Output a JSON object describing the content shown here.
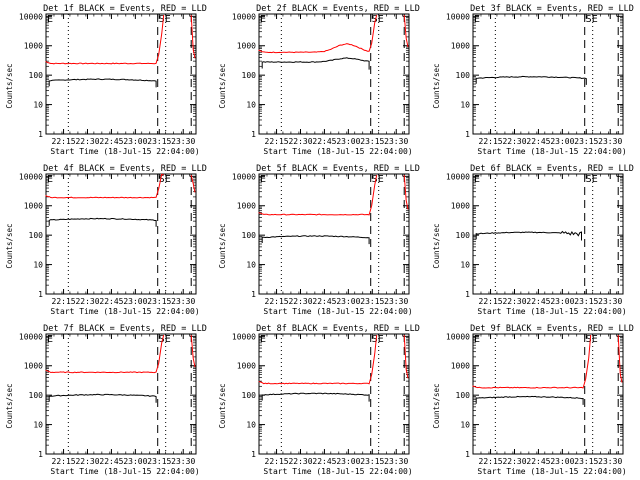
{
  "chart_data": {
    "type": "line",
    "x_tick_labels": [
      "22:15",
      "22:30",
      "22:45",
      "23:00",
      "23:15",
      "23:30"
    ],
    "y_tick_labels": [
      "1",
      "10",
      "100",
      "1000",
      "10000"
    ],
    "ylim": [
      1,
      12000
    ],
    "yscale": "log",
    "xlabel": "Start Time (18-Jul-15 22:04:00)",
    "ylabel": "Counts/sec",
    "colors": {
      "events": "#000000",
      "lld": "#ff0000"
    },
    "markers": {
      "entry": "E",
      "eclipse": "SE"
    },
    "panels": [
      {
        "title": "Det 1f BLACK = Events, RED = LLD",
        "events_level": 70,
        "lld_level": 250,
        "events_end": "23:13",
        "lld_shape": "flat",
        "has_lld": true
      },
      {
        "title": "Det 2f BLACK = Events, RED = LLD",
        "events_level": 280,
        "lld_level": 600,
        "events_end": "23:13",
        "lld_shape": "bump",
        "has_lld": true
      },
      {
        "title": "Det 3f BLACK = Events, RED = LLD",
        "events_level": 85,
        "lld_level": null,
        "events_end": "23:15",
        "lld_shape": "none",
        "has_lld": false
      },
      {
        "title": "Det 4f BLACK = Events, RED = LLD",
        "events_level": 350,
        "lld_level": 1900,
        "events_end": "23:13",
        "lld_shape": "flat",
        "has_lld": true
      },
      {
        "title": "Det 5f BLACK = Events, RED = LLD",
        "events_level": 90,
        "lld_level": 500,
        "events_end": "23:13",
        "lld_shape": "flat",
        "has_lld": true
      },
      {
        "title": "Det 6f BLACK = Events, RED = LLD",
        "events_level": 120,
        "lld_level": null,
        "events_end": "23:12",
        "lld_shape": "none",
        "has_lld": false
      },
      {
        "title": "Det 7f BLACK = Events, RED = LLD",
        "events_level": 100,
        "lld_level": 600,
        "events_end": "23:13",
        "lld_shape": "flat",
        "has_lld": true
      },
      {
        "title": "Det 8f BLACK = Events, RED = LLD",
        "events_level": 110,
        "lld_level": 250,
        "events_end": "23:13",
        "lld_shape": "flat",
        "has_lld": true
      },
      {
        "title": "Det 9f BLACK = Events, RED = LLD",
        "events_level": 85,
        "lld_level": 180,
        "events_end": "23:13",
        "lld_shape": "flat",
        "has_lld": true
      }
    ]
  }
}
